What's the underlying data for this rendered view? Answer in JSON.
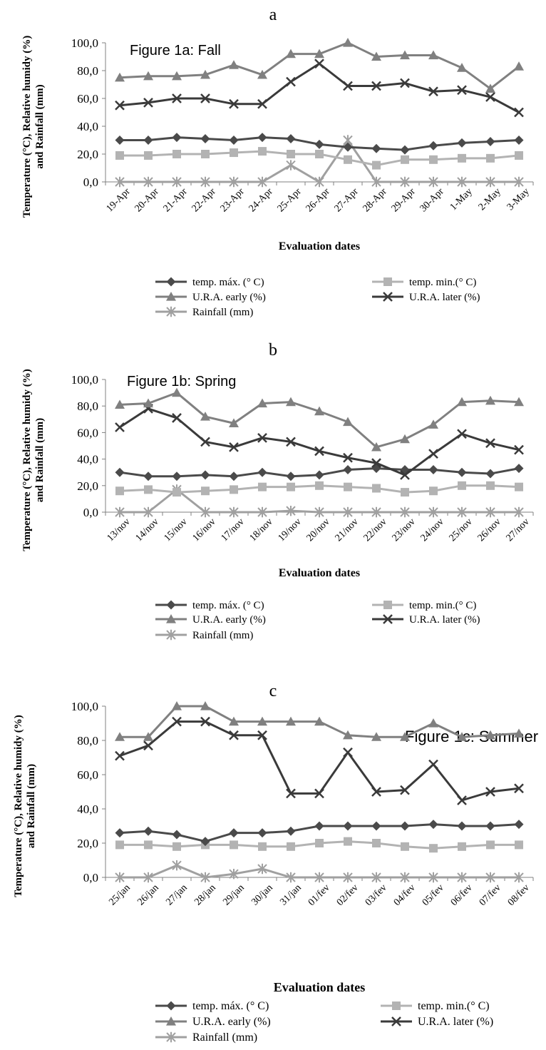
{
  "colors": {
    "temp_max": "#4a4a4a",
    "temp_min": "#b3b3b3",
    "ura_early": "#808080",
    "ura_later": "#3a3a3a",
    "rainfall": "#a0a0a0"
  },
  "legend_labels": {
    "temp_max": "temp. máx. (° C)",
    "temp_min": "temp. min.(° C)",
    "ura_early": "U.R.A. early (%)",
    "ura_later": "U.R.A. later (%)",
    "rainfall": "Rainfall (mm)"
  },
  "chart_data": [
    {
      "type": "line",
      "panel_letter": "a",
      "title": "Figure 1a: Fall",
      "xlabel": "Evaluation dates",
      "ylabel": "Temperature (°C), Relative humidy (%) and Rainfall (mm)",
      "ylim": [
        0,
        100
      ],
      "yticks": [
        "0,0",
        "20,0",
        "40,0",
        "60,0",
        "80,0",
        "100,0"
      ],
      "grid": false,
      "legend_position": "bottom",
      "categories": [
        "19-Apr",
        "20-Apr",
        "21-Apr",
        "22-Apr",
        "23-Apr",
        "24-Apr",
        "25-Apr",
        "26-Apr",
        "27-Apr",
        "28-Apr",
        "29-Apr",
        "30-Apr",
        "1-May",
        "2-May",
        "3-May"
      ],
      "series": [
        {
          "key": "temp_max",
          "name": "temp. máx. (° C)",
          "values": [
            30,
            30,
            32,
            31,
            30,
            32,
            31,
            27,
            25,
            24,
            23,
            26,
            28,
            29,
            30
          ]
        },
        {
          "key": "temp_min",
          "name": "temp. min.(° C)",
          "values": [
            19,
            19,
            20,
            20,
            21,
            22,
            20,
            20,
            16,
            12,
            16,
            16,
            17,
            17,
            19
          ]
        },
        {
          "key": "ura_early",
          "name": "U.R.A. early (%)",
          "values": [
            75,
            76,
            76,
            77,
            84,
            77,
            92,
            92,
            100,
            90,
            91,
            91,
            82,
            67,
            83
          ]
        },
        {
          "key": "ura_later",
          "name": "U.R.A. later (%)",
          "values": [
            55,
            57,
            60,
            60,
            56,
            56,
            72,
            85,
            69,
            69,
            71,
            65,
            66,
            61,
            50
          ]
        },
        {
          "key": "rainfall",
          "name": "Rainfall (mm)",
          "values": [
            0,
            0,
            0,
            0,
            0,
            0,
            12,
            0,
            30,
            0,
            0,
            0,
            0,
            0,
            0
          ]
        }
      ]
    },
    {
      "type": "line",
      "panel_letter": "b",
      "title": "Figure 1b: Spring",
      "xlabel": "Evaluation dates",
      "ylabel": "Temperature (°C), Relative humidy (%) and Rainfall (mm)",
      "ylim": [
        0,
        100
      ],
      "yticks": [
        "0,0",
        "20,0",
        "40,0",
        "60,0",
        "80,0",
        "100,0"
      ],
      "grid": false,
      "legend_position": "bottom",
      "categories": [
        "13/nov",
        "14/nov",
        "15/nov",
        "16/nov",
        "17/nov",
        "18/nov",
        "19/nov",
        "20/nov",
        "21/nov",
        "22/nov",
        "23/nov",
        "24/nov",
        "25/nov",
        "26/nov",
        "27/nov"
      ],
      "series": [
        {
          "key": "temp_max",
          "name": "temp. máx. (° C)",
          "values": [
            30,
            27,
            27,
            28,
            27,
            30,
            27,
            28,
            32,
            33,
            32,
            32,
            30,
            29,
            33
          ]
        },
        {
          "key": "temp_min",
          "name": "temp. min.(° C)",
          "values": [
            16,
            17,
            15,
            16,
            17,
            19,
            19,
            20,
            19,
            18,
            15,
            16,
            20,
            20,
            19
          ]
        },
        {
          "key": "ura_early",
          "name": "U.R.A. early (%)",
          "values": [
            81,
            82,
            90,
            72,
            67,
            82,
            83,
            76,
            68,
            49,
            55,
            66,
            83,
            84,
            83
          ]
        },
        {
          "key": "ura_later",
          "name": "U.R.A. later (%)",
          "values": [
            64,
            78,
            71,
            53,
            49,
            56,
            53,
            46,
            41,
            37,
            28,
            44,
            59,
            52,
            47
          ]
        },
        {
          "key": "rainfall",
          "name": "Rainfall (mm)",
          "values": [
            0,
            0,
            17,
            0,
            0,
            0,
            1,
            0,
            0,
            0,
            0,
            0,
            0,
            0,
            0
          ]
        }
      ]
    },
    {
      "type": "line",
      "panel_letter": "c",
      "title": "Figure 1c: Summer",
      "xlabel": "Evaluation dates",
      "ylabel": "Temperature (°C), Relative humidy (%) and Rainfall (mm)",
      "ylim": [
        0,
        100
      ],
      "yticks": [
        "0,0",
        "20,0",
        "40,0",
        "60,0",
        "80,0",
        "100,0"
      ],
      "grid": false,
      "legend_position": "bottom",
      "categories": [
        "25/jan",
        "26/jan",
        "27/jan",
        "28/jan",
        "29/jan",
        "30/jan",
        "31/jan",
        "01/fev",
        "02/fev",
        "03/fev",
        "04/fev",
        "05/fev",
        "06/fev",
        "07/fev",
        "08/fev"
      ],
      "series": [
        {
          "key": "temp_max",
          "name": "temp. máx. (° C)",
          "values": [
            26,
            27,
            25,
            21,
            26,
            26,
            27,
            30,
            30,
            30,
            30,
            31,
            30,
            30,
            31
          ]
        },
        {
          "key": "temp_min",
          "name": "temp. min.(° C)",
          "values": [
            19,
            19,
            18,
            19,
            19,
            18,
            18,
            20,
            21,
            20,
            18,
            17,
            18,
            19,
            19
          ]
        },
        {
          "key": "ura_early",
          "name": "U.R.A. early (%)",
          "values": [
            82,
            82,
            100,
            100,
            91,
            91,
            91,
            91,
            83,
            82,
            82,
            90,
            82,
            83,
            84
          ]
        },
        {
          "key": "ura_later",
          "name": "U.R.A. later (%)",
          "values": [
            71,
            77,
            91,
            91,
            83,
            83,
            49,
            49,
            73,
            50,
            51,
            66,
            45,
            50,
            52
          ]
        },
        {
          "key": "rainfall",
          "name": "Rainfall (mm)",
          "values": [
            0,
            0,
            7,
            0,
            2,
            5,
            0,
            0,
            0,
            0,
            0,
            0,
            0,
            0,
            0
          ]
        }
      ]
    }
  ]
}
